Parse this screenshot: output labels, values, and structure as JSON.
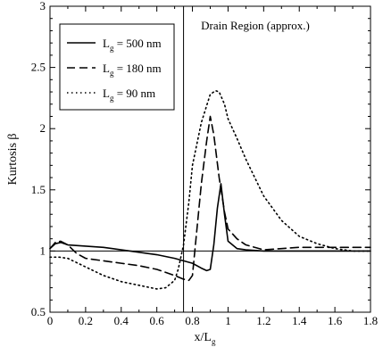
{
  "chart_data": {
    "type": "line",
    "title": "",
    "xlabel": {
      "main": "x/L",
      "sub": "g"
    },
    "ylabel": "Kurtosis  β",
    "xlim": [
      0,
      1.8
    ],
    "ylim": [
      0.5,
      3
    ],
    "x_ticks": [
      0,
      0.2,
      0.4,
      0.6,
      0.8,
      1,
      1.2,
      1.4,
      1.6,
      1.8
    ],
    "x_tick_labels": [
      "0",
      "0.2",
      "0.4",
      "0.6",
      "0.8",
      "1",
      "1.2",
      "1.4",
      "1.6",
      "1.8"
    ],
    "y_ticks": [
      0.5,
      1,
      1.5,
      2,
      2.5,
      3
    ],
    "y_tick_labels": [
      "0.5",
      "1",
      "1.5",
      "2",
      "2.5",
      "3"
    ],
    "grid": false,
    "legend_position": "top-left",
    "reference_lines": {
      "vertical_x": 0.75,
      "horizontal_y": 1.0
    },
    "annotation": "Drain Region (approx.)",
    "series": [
      {
        "name": "L_g = 500 nm",
        "label_main": "L",
        "label_sub": "g",
        "label_rest": " = 500 nm",
        "dash": "solid",
        "x": [
          0,
          0.03,
          0.06,
          0.1,
          0.2,
          0.3,
          0.4,
          0.5,
          0.6,
          0.7,
          0.8,
          0.85,
          0.88,
          0.9,
          0.92,
          0.94,
          0.96,
          0.98,
          1.0,
          1.05,
          1.1,
          1.2,
          1.3,
          1.4,
          1.5,
          1.6,
          1.7,
          1.8
        ],
        "y": [
          1.02,
          1.06,
          1.07,
          1.05,
          1.04,
          1.03,
          1.01,
          0.99,
          0.97,
          0.94,
          0.9,
          0.86,
          0.84,
          0.85,
          1.05,
          1.35,
          1.55,
          1.3,
          1.08,
          1.02,
          1.01,
          1.0,
          1.0,
          1.0,
          1.0,
          1.0,
          1.0,
          1.0
        ]
      },
      {
        "name": "L_g = 180 nm",
        "label_main": "L",
        "label_sub": "g",
        "label_rest": " = 180 nm",
        "dash": "dashed",
        "x": [
          0,
          0.03,
          0.06,
          0.1,
          0.15,
          0.2,
          0.3,
          0.4,
          0.5,
          0.6,
          0.7,
          0.75,
          0.78,
          0.8,
          0.82,
          0.85,
          0.88,
          0.9,
          0.92,
          0.95,
          0.98,
          1.0,
          1.05,
          1.1,
          1.2,
          1.3,
          1.4,
          1.5,
          1.6,
          1.7,
          1.8
        ],
        "y": [
          1.02,
          1.07,
          1.08,
          1.05,
          0.98,
          0.94,
          0.92,
          0.9,
          0.88,
          0.85,
          0.8,
          0.77,
          0.76,
          0.8,
          1.1,
          1.55,
          1.9,
          2.1,
          1.95,
          1.6,
          1.32,
          1.18,
          1.1,
          1.05,
          1.01,
          1.02,
          1.03,
          1.03,
          1.03,
          1.03,
          1.03
        ]
      },
      {
        "name": "L_g = 90 nm",
        "label_main": "L",
        "label_sub": "g",
        "label_rest": " = 90 nm",
        "dash": "dotted",
        "x": [
          0,
          0.05,
          0.1,
          0.2,
          0.3,
          0.4,
          0.5,
          0.6,
          0.65,
          0.7,
          0.72,
          0.75,
          0.78,
          0.8,
          0.85,
          0.9,
          0.93,
          0.95,
          0.98,
          1.0,
          1.05,
          1.1,
          1.2,
          1.3,
          1.4,
          1.5,
          1.6,
          1.7,
          1.8
        ],
        "y": [
          0.95,
          0.95,
          0.94,
          0.87,
          0.8,
          0.75,
          0.72,
          0.69,
          0.7,
          0.76,
          0.85,
          1.05,
          1.4,
          1.7,
          2.05,
          2.28,
          2.31,
          2.3,
          2.2,
          2.08,
          1.92,
          1.75,
          1.45,
          1.25,
          1.12,
          1.06,
          1.02,
          1.0,
          1.0
        ]
      }
    ]
  }
}
